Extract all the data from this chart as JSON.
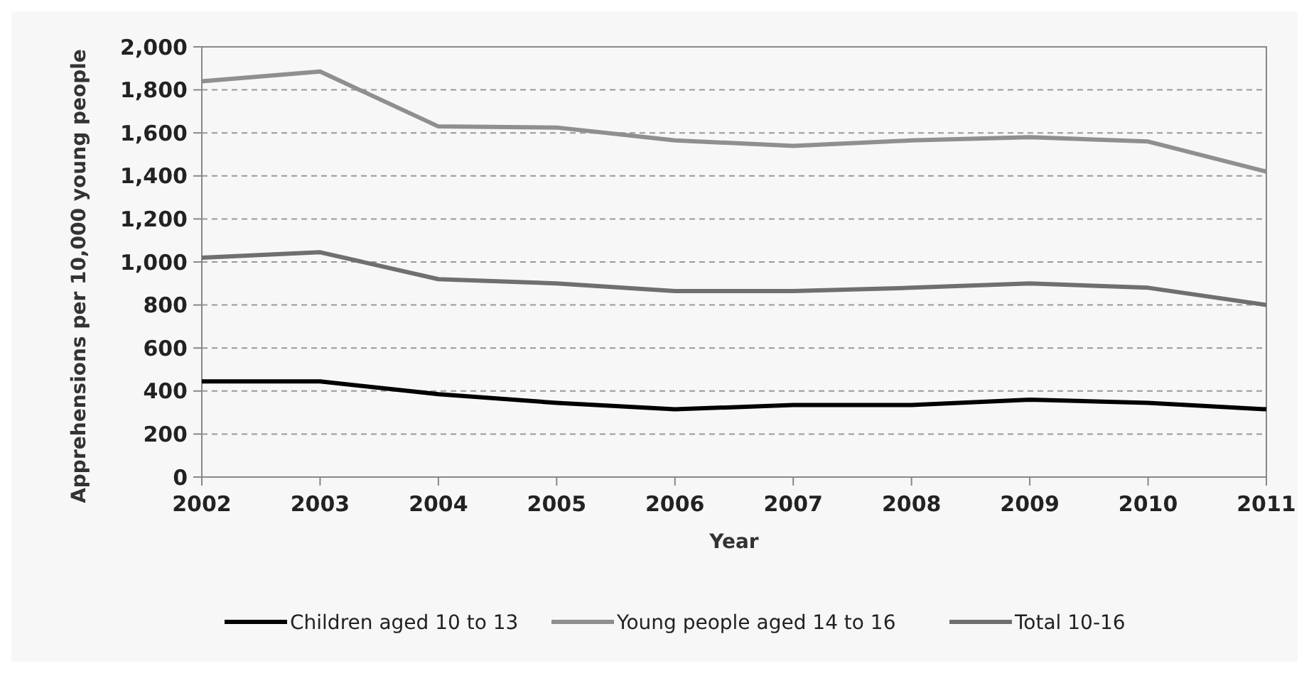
{
  "chart_data": {
    "type": "line",
    "xlabel": "Year",
    "ylabel": "Apprehensions per 10,000 young people",
    "categories": [
      "2002",
      "2003",
      "2004",
      "2005",
      "2006",
      "2007",
      "2008",
      "2009",
      "2010",
      "2011"
    ],
    "series": [
      {
        "name": "Children aged 10 to 13",
        "color": "#000000",
        "values": [
          445,
          445,
          385,
          345,
          315,
          335,
          335,
          360,
          345,
          315
        ]
      },
      {
        "name": "Young people aged 14 to 16",
        "color": "#8f8f8f",
        "values": [
          1840,
          1885,
          1630,
          1625,
          1565,
          1540,
          1565,
          1580,
          1560,
          1420
        ]
      },
      {
        "name": "Total 10-16",
        "color": "#6f6f6f",
        "values": [
          1020,
          1045,
          920,
          900,
          865,
          865,
          880,
          900,
          880,
          800
        ]
      }
    ],
    "ylim": [
      0,
      2000
    ],
    "yticks": [
      {
        "value": 0,
        "label": "0"
      },
      {
        "value": 200,
        "label": "200"
      },
      {
        "value": 400,
        "label": "400"
      },
      {
        "value": 600,
        "label": "600"
      },
      {
        "value": 800,
        "label": "800"
      },
      {
        "value": 1000,
        "label": "1,000"
      },
      {
        "value": 1200,
        "label": "1,200"
      },
      {
        "value": 1400,
        "label": "1,400"
      },
      {
        "value": 1600,
        "label": "1,600"
      },
      {
        "value": 1800,
        "label": "1,800"
      },
      {
        "value": 2000,
        "label": "2,000"
      }
    ],
    "grid": "y",
    "legend": "bottom",
    "marker": "none",
    "line_style": "solid"
  }
}
